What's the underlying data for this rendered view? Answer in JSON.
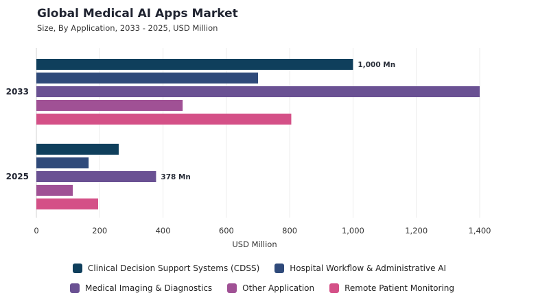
{
  "chart_data": {
    "type": "bar",
    "orientation": "horizontal",
    "title": "Global Medical AI Apps Market",
    "subtitle": "Size, By Application, 2033 - 2025, USD Million",
    "xlabel": "USD Million",
    "ylabel": "",
    "xlim": [
      0,
      1400
    ],
    "x_ticks": [
      "0",
      "200",
      "400",
      "600",
      "800",
      "1,000",
      "1,200",
      "1,400"
    ],
    "categories": [
      "2033",
      "2025"
    ],
    "series": [
      {
        "name": "Clinical Decision Support Systems (CDSS)",
        "color": "#0f3f5c",
        "values": [
          1000,
          260
        ],
        "data_labels": [
          "1,000 Mn",
          ""
        ]
      },
      {
        "name": "Hospital Workflow & Administrative AI",
        "color": "#2f4a7a",
        "values": [
          700,
          165
        ],
        "data_labels": [
          "",
          ""
        ]
      },
      {
        "name": "Medical Imaging & Diagnostics",
        "color": "#6a5193",
        "values": [
          1400,
          378
        ],
        "data_labels": [
          "",
          "378 Mn"
        ]
      },
      {
        "name": "Other Application",
        "color": "#a05195",
        "values": [
          462,
          115
        ],
        "data_labels": [
          "",
          ""
        ]
      },
      {
        "name": "Remote Patient Monitoring",
        "color": "#d45087",
        "values": [
          805,
          195
        ],
        "data_labels": [
          "",
          ""
        ]
      }
    ],
    "grid": true,
    "legend_position": "bottom"
  }
}
